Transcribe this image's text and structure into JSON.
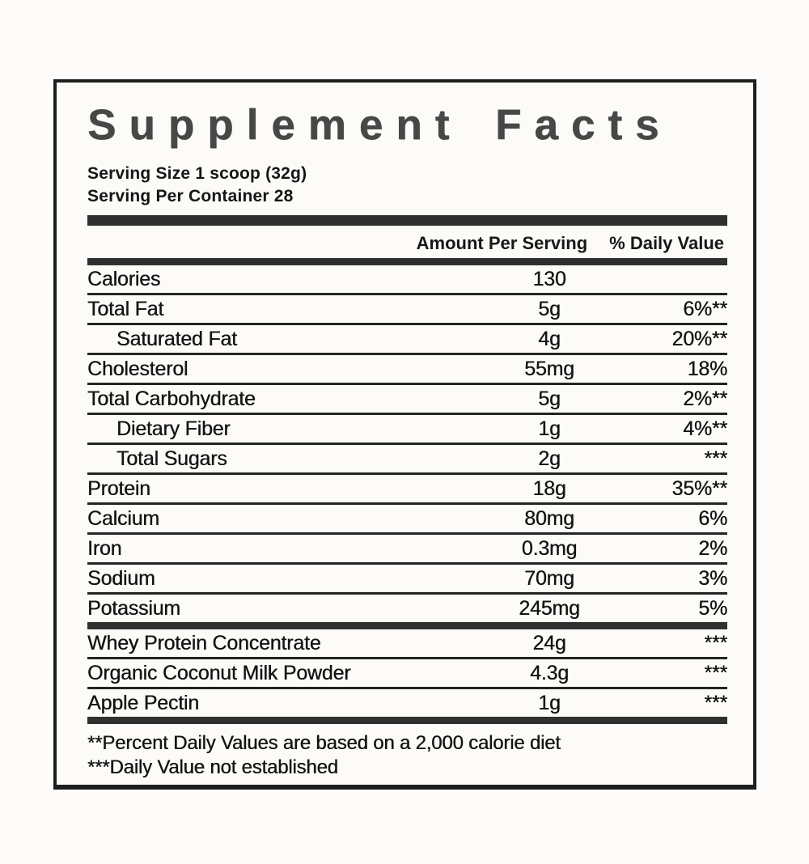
{
  "label": {
    "title": "Supplement Facts",
    "serving_size": "Serving Size 1 scoop (32g)",
    "servings_per_container": "Serving Per Container 28",
    "columns": {
      "amount": "Amount Per Serving",
      "dv": "% Daily Value"
    },
    "nutrients": [
      {
        "name": "Calories",
        "amount": "130",
        "dv": "",
        "indent": false
      },
      {
        "name": "Total Fat",
        "amount": "5g",
        "dv": "6%**",
        "indent": false
      },
      {
        "name": "Saturated Fat",
        "amount": "4g",
        "dv": "20%**",
        "indent": true
      },
      {
        "name": "Cholesterol",
        "amount": "55mg",
        "dv": "18%",
        "indent": false
      },
      {
        "name": "Total Carbohydrate",
        "amount": "5g",
        "dv": "2%**",
        "indent": false
      },
      {
        "name": "Dietary Fiber",
        "amount": "1g",
        "dv": "4%**",
        "indent": true
      },
      {
        "name": "Total Sugars",
        "amount": "2g",
        "dv": "***",
        "indent": true
      },
      {
        "name": "Protein",
        "amount": "18g",
        "dv": "35%**",
        "indent": false
      },
      {
        "name": "Calcium",
        "amount": "80mg",
        "dv": "6%",
        "indent": false
      },
      {
        "name": "Iron",
        "amount": "0.3mg",
        "dv": "2%",
        "indent": false
      },
      {
        "name": "Sodium",
        "amount": "70mg",
        "dv": "3%",
        "indent": false
      },
      {
        "name": "Potassium",
        "amount": "245mg",
        "dv": "5%",
        "indent": false
      }
    ],
    "ingredients": [
      {
        "name": "Whey Protein Concentrate",
        "amount": "24g",
        "dv": "***",
        "indent": false
      },
      {
        "name": "Organic Coconut Milk Powder",
        "amount": "4.3g",
        "dv": "***",
        "indent": false
      },
      {
        "name": "Apple Pectin",
        "amount": "1g",
        "dv": "***",
        "indent": false
      }
    ],
    "footnotes": [
      "**Percent Daily Values are based on a 2,000 calorie diet",
      "***Daily Value not established"
    ]
  },
  "colors": {
    "ink": "#141414",
    "title_gray": "#474747",
    "bar": "#303030",
    "paper": "#fcfbf8"
  }
}
